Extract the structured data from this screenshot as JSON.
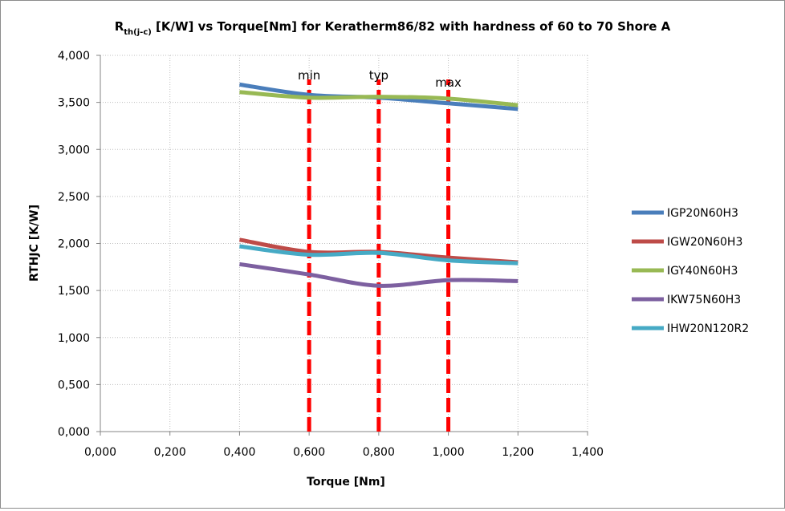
{
  "chart_data": {
    "type": "line",
    "title_main": "R",
    "title_sub": "th(j-c)",
    "title_rest": " [K/W] vs Torque[Nm] for Keratherm86/82 with hardness of 60 to 70 Shore A",
    "xlabel": "Torque [Nm]",
    "ylabel": "RTHJC [K/W]",
    "xlim": [
      0,
      1.4
    ],
    "ylim": [
      0,
      4
    ],
    "x_ticks": [
      "0,000",
      "0,200",
      "0,400",
      "0,600",
      "0,800",
      "1,000",
      "1,200",
      "1,400"
    ],
    "y_ticks": [
      "0,000",
      "0,500",
      "1,000",
      "1,500",
      "2,000",
      "2,500",
      "3,000",
      "3,500",
      "4,000"
    ],
    "grid": true,
    "legend_position": "right",
    "x": [
      0.4,
      0.6,
      0.8,
      1.0,
      1.2
    ],
    "series": [
      {
        "name": "IGP20N60H3",
        "color": "#4a7ebb",
        "values": [
          3.69,
          3.58,
          3.55,
          3.49,
          3.43
        ]
      },
      {
        "name": "IGW20N60H3",
        "color": "#be4b48",
        "values": [
          2.04,
          1.91,
          1.91,
          1.85,
          1.8
        ]
      },
      {
        "name": "IGY40N60H3",
        "color": "#98b954",
        "values": [
          3.61,
          3.55,
          3.56,
          3.54,
          3.47
        ]
      },
      {
        "name": "IKW75N60H3",
        "color": "#7d60a0",
        "values": [
          1.78,
          1.67,
          1.55,
          1.61,
          1.6
        ]
      },
      {
        "name": "IHW20N120R2",
        "color": "#46aac5",
        "values": [
          1.97,
          1.88,
          1.9,
          1.82,
          1.79
        ]
      }
    ],
    "reference_lines": [
      {
        "label": "min",
        "x": 0.6,
        "color": "#ff0000"
      },
      {
        "label": "typ",
        "x": 0.8,
        "color": "#ff0000"
      },
      {
        "label": "max",
        "x": 1.0,
        "color": "#ff0000"
      }
    ]
  }
}
